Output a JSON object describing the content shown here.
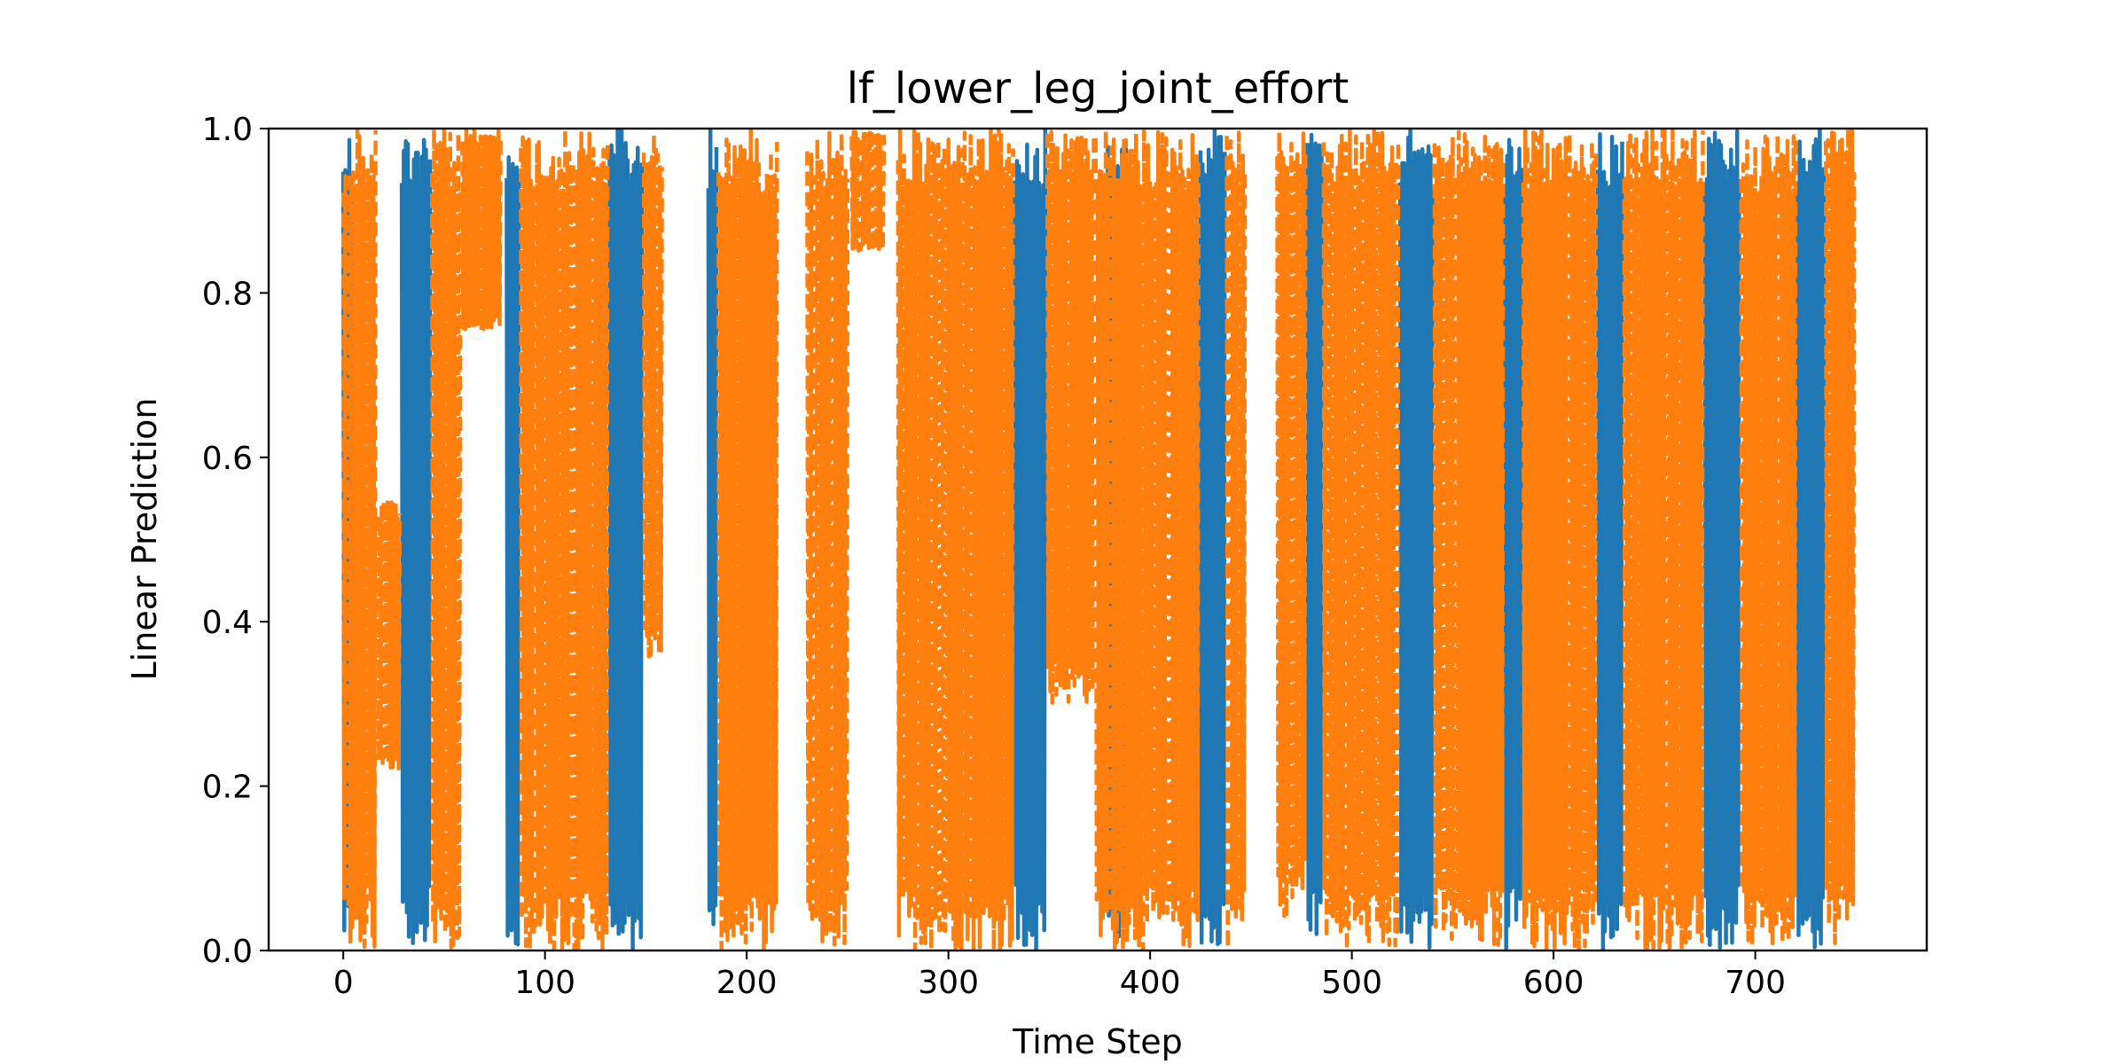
{
  "chart_data": {
    "type": "line",
    "title": "lf_lower_leg_joint_effort",
    "xlabel": "Time Step",
    "ylabel": "Linear Prediction",
    "xlim": [
      -37,
      785
    ],
    "ylim": [
      0.0,
      1.0
    ],
    "x_ticks": [
      "0",
      "100",
      "200",
      "300",
      "400",
      "500",
      "600",
      "700"
    ],
    "x_tick_values": [
      0,
      100,
      200,
      300,
      400,
      500,
      600,
      700
    ],
    "y_ticks": [
      "0.0",
      "0.2",
      "0.4",
      "0.6",
      "0.8",
      "1.0"
    ],
    "y_tick_values": [
      0.0,
      0.2,
      0.4,
      0.6,
      0.8,
      1.0
    ],
    "grid": false,
    "legend": "none",
    "x_range": [
      0,
      749
    ],
    "series": [
      {
        "style": "solid",
        "color": "#1f77b4",
        "description_segments": [
          {
            "x_start": 0,
            "x_end": 4,
            "y_low": 0.0,
            "y_high": 1.0
          },
          {
            "x_start": 29,
            "x_end": 43,
            "y_low": 0.0,
            "y_high": 1.0
          },
          {
            "x_start": 81,
            "x_end": 87,
            "y_low": 0.0,
            "y_high": 1.0
          },
          {
            "x_start": 132,
            "x_end": 148,
            "y_low": 0.0,
            "y_high": 1.0
          },
          {
            "x_start": 181,
            "x_end": 185,
            "y_low": 0.0,
            "y_high": 1.0
          },
          {
            "x_start": 333,
            "x_end": 348,
            "y_low": 0.0,
            "y_high": 1.0
          },
          {
            "x_start": 379,
            "x_end": 388,
            "y_low": 0.0,
            "y_high": 1.0
          },
          {
            "x_start": 425,
            "x_end": 437,
            "y_low": 0.0,
            "y_high": 1.0
          },
          {
            "x_start": 478,
            "x_end": 485,
            "y_low": 0.0,
            "y_high": 1.0
          },
          {
            "x_start": 524,
            "x_end": 540,
            "y_low": 0.0,
            "y_high": 1.0
          },
          {
            "x_start": 576,
            "x_end": 584,
            "y_low": 0.0,
            "y_high": 1.0
          },
          {
            "x_start": 622,
            "x_end": 634,
            "y_low": 0.0,
            "y_high": 1.0
          },
          {
            "x_start": 675,
            "x_end": 692,
            "y_low": 0.0,
            "y_high": 1.0
          },
          {
            "x_start": 721,
            "x_end": 734,
            "y_low": 0.0,
            "y_high": 1.0
          }
        ]
      },
      {
        "style": "dashed",
        "color": "#ff7f0e",
        "description_segments": [
          {
            "x_start": 0,
            "x_end": 16,
            "y_low": 0.0,
            "y_high": 1.0
          },
          {
            "x_start": 17,
            "x_end": 28,
            "y_low": 0.22,
            "y_high": 0.55
          },
          {
            "x_start": 44,
            "x_end": 58,
            "y_low": 0.0,
            "y_high": 1.0
          },
          {
            "x_start": 59,
            "x_end": 78,
            "y_low": 0.75,
            "y_high": 1.0
          },
          {
            "x_start": 88,
            "x_end": 131,
            "y_low": 0.0,
            "y_high": 1.0
          },
          {
            "x_start": 149,
            "x_end": 158,
            "y_low": 0.35,
            "y_high": 1.0
          },
          {
            "x_start": 186,
            "x_end": 215,
            "y_low": 0.0,
            "y_high": 1.0
          },
          {
            "x_start": 230,
            "x_end": 250,
            "y_low": 0.0,
            "y_high": 1.0
          },
          {
            "x_start": 252,
            "x_end": 268,
            "y_low": 0.85,
            "y_high": 1.0
          },
          {
            "x_start": 275,
            "x_end": 332,
            "y_low": 0.0,
            "y_high": 1.0
          },
          {
            "x_start": 349,
            "x_end": 372,
            "y_low": 0.3,
            "y_high": 1.0
          },
          {
            "x_start": 373,
            "x_end": 424,
            "y_low": 0.0,
            "y_high": 1.0
          },
          {
            "x_start": 438,
            "x_end": 447,
            "y_low": 0.0,
            "y_high": 1.0
          },
          {
            "x_start": 463,
            "x_end": 477,
            "y_low": 0.04,
            "y_high": 1.0
          },
          {
            "x_start": 486,
            "x_end": 523,
            "y_low": 0.0,
            "y_high": 1.0
          },
          {
            "x_start": 541,
            "x_end": 575,
            "y_low": 0.0,
            "y_high": 1.0
          },
          {
            "x_start": 585,
            "x_end": 621,
            "y_low": 0.0,
            "y_high": 1.0
          },
          {
            "x_start": 635,
            "x_end": 674,
            "y_low": 0.0,
            "y_high": 1.0
          },
          {
            "x_start": 693,
            "x_end": 720,
            "y_low": 0.0,
            "y_high": 1.0
          },
          {
            "x_start": 735,
            "x_end": 749,
            "y_low": 0.0,
            "y_high": 1.0
          }
        ]
      }
    ]
  }
}
